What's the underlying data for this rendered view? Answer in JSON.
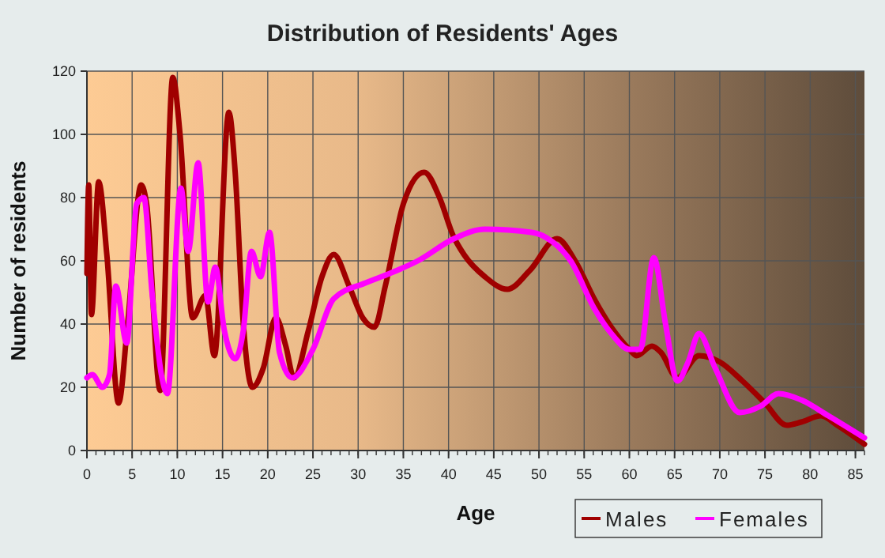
{
  "chart_data": {
    "type": "line",
    "title": "Distribution of Residents' Ages",
    "xlabel": "Age",
    "ylabel": "Number of residents",
    "xlim": [
      0,
      86
    ],
    "xticks": [
      0,
      5,
      10,
      15,
      20,
      25,
      30,
      35,
      40,
      45,
      50,
      55,
      60,
      65,
      70,
      75,
      80,
      85
    ],
    "ylim": [
      0,
      120
    ],
    "yticks": [
      0,
      20,
      40,
      60,
      80,
      100,
      120
    ],
    "grid": true,
    "legend": "bottom right",
    "marker": "none",
    "line_style": "solid",
    "series": [
      {
        "name": "Males",
        "color": "#a00000",
        "x": [
          0,
          0.2,
          0.5,
          1.3,
          2.2,
          3.5,
          4.5,
          6,
          6.6,
          8.1,
          9.5,
          10.3,
          11.7,
          13.1,
          14.1,
          15.7,
          16.4,
          17.3,
          18.3,
          19.5,
          20.9,
          22,
          22.9,
          24.5,
          26,
          27.3,
          29,
          30.5,
          31.8,
          33,
          35,
          37.3,
          39,
          40.5,
          41.7,
          44,
          46.5,
          49,
          52,
          54,
          56.1,
          58,
          60,
          60.8,
          62.5,
          63.5,
          65.3,
          67.7,
          70,
          72.5,
          75,
          77.4,
          79,
          81.2,
          83,
          86
        ],
        "values": [
          56,
          84,
          43,
          85,
          62,
          15,
          40,
          84,
          78,
          19,
          118,
          100,
          42,
          49,
          30,
          107,
          88,
          40,
          20,
          26,
          42,
          33,
          23,
          38,
          55,
          62,
          52,
          42,
          39,
          52,
          78,
          88,
          80,
          68,
          62,
          55,
          51,
          57,
          67,
          60,
          48,
          39,
          32,
          30,
          33,
          31,
          23,
          30,
          28,
          22,
          15,
          8,
          9,
          11,
          8,
          2
        ]
      },
      {
        "name": "Females",
        "color": "#ff00ff",
        "x": [
          0,
          0.6,
          1.7,
          2.5,
          3.2,
          4.4,
          5.5,
          6.3,
          7.2,
          8.3,
          8.9,
          10.4,
          11.2,
          12.3,
          13.4,
          14.2,
          15.2,
          16.4,
          17.3,
          18.2,
          19.2,
          20.2,
          21.3,
          22.7,
          25,
          27.3,
          30.8,
          33.5,
          36.6,
          40.6,
          44,
          49.2,
          51.5,
          53.5,
          56.1,
          58,
          60,
          61.2,
          62.7,
          64,
          65.3,
          66.5,
          67.7,
          69.5,
          72.2,
          74.5,
          76.5,
          79,
          82,
          86
        ],
        "values": [
          23,
          24,
          20,
          24,
          52,
          34,
          78,
          80,
          50,
          23,
          18,
          83,
          63,
          91,
          47,
          58,
          38,
          29,
          38,
          63,
          55,
          69,
          31,
          23,
          32,
          48,
          53,
          56,
          60,
          67,
          70,
          69,
          66,
          60,
          45,
          37,
          32,
          32,
          61,
          40,
          22,
          28,
          37,
          26,
          12,
          14,
          18,
          16,
          11,
          4
        ]
      }
    ]
  }
}
